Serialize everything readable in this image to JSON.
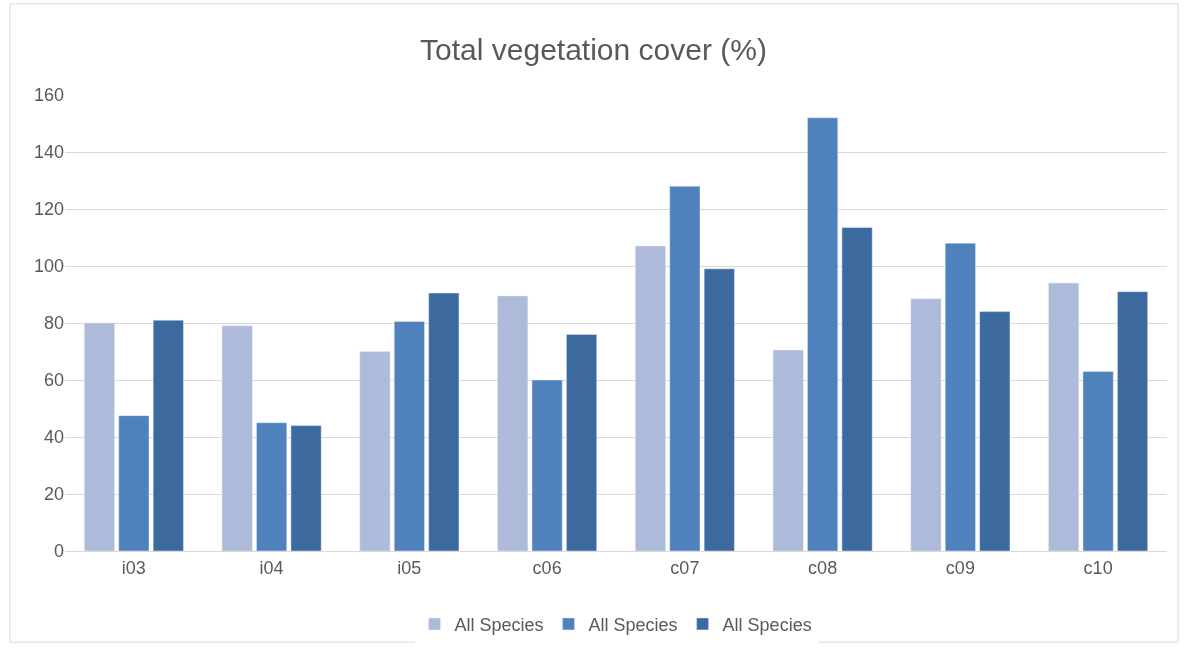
{
  "chart_data": {
    "type": "bar",
    "title": "Total vegetation cover (%)",
    "categories": [
      "i03",
      "i04",
      "i05",
      "c06",
      "c07",
      "c08",
      "c09",
      "c10"
    ],
    "series": [
      {
        "name": "All Species",
        "color": "#adbad9",
        "values": [
          80,
          79,
          70,
          89.5,
          107,
          70.5,
          88.5,
          94
        ]
      },
      {
        "name": "All Species",
        "color": "#4f81bd",
        "values": [
          47.5,
          45,
          80.5,
          60,
          128,
          152,
          108,
          63
        ]
      },
      {
        "name": "All Species",
        "color": "#3d6a9e",
        "values": [
          81,
          44,
          90.5,
          76,
          99,
          113.5,
          84,
          91
        ]
      }
    ],
    "ylim": [
      0,
      160
    ],
    "yticks": [
      0,
      20,
      40,
      60,
      80,
      100,
      120,
      140,
      160
    ],
    "grid": "y",
    "legend": "bottom"
  }
}
